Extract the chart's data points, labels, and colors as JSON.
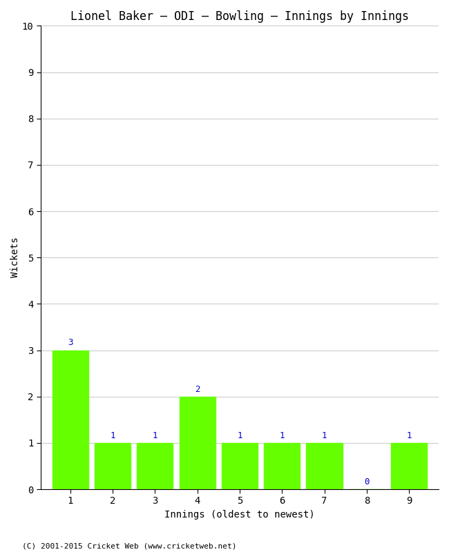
{
  "title": "Lionel Baker – ODI – Bowling – Innings by Innings",
  "xlabel": "Innings (oldest to newest)",
  "ylabel": "Wickets",
  "categories": [
    "1",
    "2",
    "3",
    "4",
    "5",
    "6",
    "7",
    "8",
    "9"
  ],
  "values": [
    3,
    1,
    1,
    2,
    1,
    1,
    1,
    0,
    1
  ],
  "bar_color": "#66ff00",
  "bar_edge_color": "#66ff00",
  "label_color": "#0000cc",
  "ylim": [
    0,
    10
  ],
  "yticks": [
    0,
    1,
    2,
    3,
    4,
    5,
    6,
    7,
    8,
    9,
    10
  ],
  "background_color": "#ffffff",
  "plot_bg_color": "#ffffff",
  "grid_color": "#cccccc",
  "title_fontsize": 12,
  "axis_label_fontsize": 10,
  "tick_fontsize": 10,
  "value_label_fontsize": 9,
  "footer": "(C) 2001-2015 Cricket Web (www.cricketweb.net)"
}
